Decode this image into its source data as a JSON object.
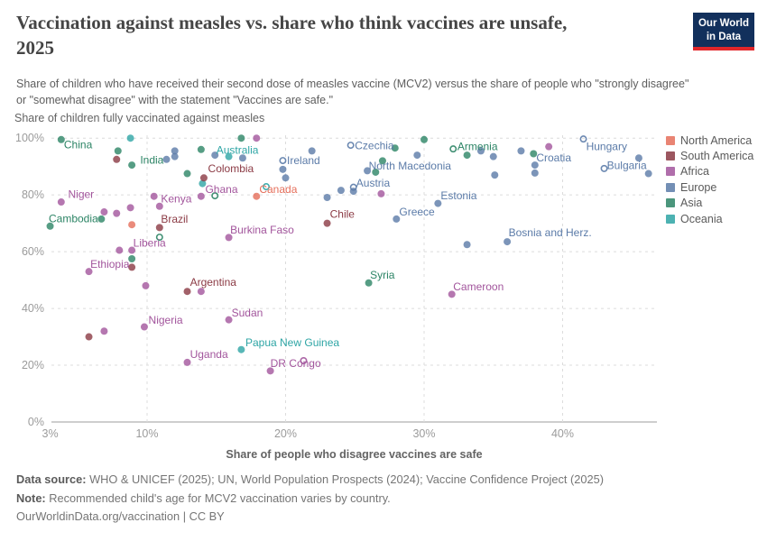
{
  "header": {
    "title_line1": "Vaccination against measles vs. share who think vaccines are unsafe,",
    "title_line2": "2025",
    "subtitle": "Share of children who have received their second dose of measles vaccine (MCV2) versus the share of people who \"strongly disagree\" or \"somewhat disagree\" with the statement \"Vaccines are safe.\"",
    "logo": {
      "line1": "Our World",
      "line2": "in Data",
      "bg": "#12305c",
      "accent": "#e2262a"
    }
  },
  "chart_data": {
    "type": "scatter",
    "title": "Vaccination against measles vs. share who think vaccines are unsafe, 2025",
    "xlabel": "Share of people who disagree vaccines are safe",
    "ylabel": "Share of children fully vaccinated against measles",
    "xlim": [
      2.5,
      46.8
    ],
    "ylim": [
      0,
      101
    ],
    "grid": "dashed",
    "legend_position": "right",
    "x_ticks": [
      {
        "v": 3,
        "t": "3%"
      },
      {
        "v": 10,
        "t": "10%"
      },
      {
        "v": 20,
        "t": "20%"
      },
      {
        "v": 30,
        "t": "30%"
      },
      {
        "v": 40,
        "t": "40%"
      }
    ],
    "y_ticks": [
      {
        "v": 0,
        "t": "0%"
      },
      {
        "v": 20,
        "t": "20%"
      },
      {
        "v": 40,
        "t": "40%"
      },
      {
        "v": 60,
        "t": "60%"
      },
      {
        "v": 80,
        "t": "80%"
      },
      {
        "v": 100,
        "t": "100%"
      }
    ],
    "legend": [
      {
        "id": "NA",
        "label": "North America",
        "color": "#E56E5A"
      },
      {
        "id": "SA",
        "label": "South America",
        "color": "#8B3A44"
      },
      {
        "id": "AF",
        "label": "Africa",
        "color": "#A2559C"
      },
      {
        "id": "EU",
        "label": "Europe",
        "color": "#5B7BA8"
      },
      {
        "id": "AS",
        "label": "Asia",
        "color": "#2C8465"
      },
      {
        "id": "OC",
        "label": "Oceania",
        "color": "#2EA5A5"
      }
    ],
    "points": [
      {
        "x": 3.8,
        "y": 99.5,
        "c": "AS",
        "n": "China"
      },
      {
        "x": 8.9,
        "y": 90.5,
        "c": "AS",
        "n": "India"
      },
      {
        "x": 3.0,
        "y": 69.0,
        "c": "AS",
        "n": "Cambodia"
      },
      {
        "x": 7.9,
        "y": 95.5,
        "c": "AS"
      },
      {
        "x": 13.9,
        "y": 96.0,
        "c": "AS"
      },
      {
        "x": 12.9,
        "y": 87.5,
        "c": "AS"
      },
      {
        "x": 16.8,
        "y": 100.0,
        "c": "AS"
      },
      {
        "x": 26.5,
        "y": 88.0,
        "c": "AS"
      },
      {
        "x": 27.0,
        "y": 92.0,
        "c": "AS"
      },
      {
        "x": 27.9,
        "y": 96.5,
        "c": "AS"
      },
      {
        "x": 30.0,
        "y": 99.5,
        "c": "AS"
      },
      {
        "x": 32.1,
        "y": 96.2,
        "c": "AS",
        "n": "Armenia",
        "o": true
      },
      {
        "x": 33.1,
        "y": 94.0,
        "c": "AS"
      },
      {
        "x": 37.9,
        "y": 94.5,
        "c": "AS"
      },
      {
        "x": 6.7,
        "y": 71.5,
        "c": "AS"
      },
      {
        "x": 8.9,
        "y": 57.5,
        "c": "AS"
      },
      {
        "x": 26.0,
        "y": 49.0,
        "c": "AS",
        "n": "Syria"
      },
      {
        "x": 14.9,
        "y": 79.7,
        "c": "AS",
        "o": true
      },
      {
        "x": 10.9,
        "y": 65.1,
        "c": "AS",
        "o": true
      },
      {
        "x": 8.8,
        "y": 100.0,
        "c": "OC"
      },
      {
        "x": 15.9,
        "y": 93.5,
        "c": "OC",
        "n": "Australia"
      },
      {
        "x": 14.0,
        "y": 84.0,
        "c": "OC"
      },
      {
        "x": 16.8,
        "y": 25.5,
        "c": "OC",
        "n": "Papua New Guinea"
      },
      {
        "x": 18.6,
        "y": 82.9,
        "c": "OC",
        "o": true
      },
      {
        "x": 3.8,
        "y": 77.5,
        "c": "AF",
        "n": "Niger"
      },
      {
        "x": 10.5,
        "y": 79.5,
        "c": "AF",
        "n": "Kenya"
      },
      {
        "x": 8.0,
        "y": 60.5,
        "c": "AF",
        "n": "Liberia"
      },
      {
        "x": 5.8,
        "y": 53.0,
        "c": "AF",
        "n": "Ethiopia"
      },
      {
        "x": 13.9,
        "y": 79.5,
        "c": "AF",
        "n": "Ghana"
      },
      {
        "x": 15.9,
        "y": 65.0,
        "c": "AF",
        "n": "Burkina Faso"
      },
      {
        "x": 32.0,
        "y": 45.0,
        "c": "AF",
        "n": "Cameroon"
      },
      {
        "x": 15.9,
        "y": 36.0,
        "c": "AF",
        "n": "Sudan"
      },
      {
        "x": 9.8,
        "y": 33.5,
        "c": "AF",
        "n": "Nigeria"
      },
      {
        "x": 12.9,
        "y": 21.0,
        "c": "AF",
        "n": "Uganda"
      },
      {
        "x": 18.9,
        "y": 18.0,
        "c": "AF",
        "n": "DR Congo"
      },
      {
        "x": 17.9,
        "y": 100.0,
        "c": "AF"
      },
      {
        "x": 26.9,
        "y": 80.4,
        "c": "AF"
      },
      {
        "x": 39.0,
        "y": 97.0,
        "c": "AF"
      },
      {
        "x": 6.9,
        "y": 74.0,
        "c": "AF"
      },
      {
        "x": 7.8,
        "y": 73.5,
        "c": "AF"
      },
      {
        "x": 8.8,
        "y": 75.5,
        "c": "AF"
      },
      {
        "x": 10.9,
        "y": 76.0,
        "c": "AF"
      },
      {
        "x": 8.9,
        "y": 60.5,
        "c": "AF"
      },
      {
        "x": 9.9,
        "y": 48.0,
        "c": "AF"
      },
      {
        "x": 13.9,
        "y": 46.0,
        "c": "AF"
      },
      {
        "x": 6.9,
        "y": 32.0,
        "c": "AF"
      },
      {
        "x": 21.3,
        "y": 21.6,
        "c": "AF",
        "o": true
      },
      {
        "x": 14.1,
        "y": 86.0,
        "c": "SA",
        "n": "Colombia"
      },
      {
        "x": 10.9,
        "y": 68.5,
        "c": "SA",
        "n": "Brazil"
      },
      {
        "x": 23.0,
        "y": 70.0,
        "c": "SA",
        "n": "Chile"
      },
      {
        "x": 12.9,
        "y": 46.0,
        "c": "SA",
        "n": "Argentina"
      },
      {
        "x": 7.8,
        "y": 92.5,
        "c": "SA"
      },
      {
        "x": 8.9,
        "y": 54.5,
        "c": "SA"
      },
      {
        "x": 5.8,
        "y": 30.0,
        "c": "SA"
      },
      {
        "x": 17.9,
        "y": 79.5,
        "c": "NA",
        "n": "Canada"
      },
      {
        "x": 8.9,
        "y": 69.5,
        "c": "NA"
      },
      {
        "x": 19.8,
        "y": 92.1,
        "c": "EU",
        "n": "Ireland",
        "o": true
      },
      {
        "x": 24.7,
        "y": 97.5,
        "c": "EU",
        "n": "Czechia",
        "o": true
      },
      {
        "x": 41.5,
        "y": 99.7,
        "c": "EU",
        "n": "Hungary",
        "o": true
      },
      {
        "x": 43.0,
        "y": 89.3,
        "c": "EU",
        "n": "Bulgaria",
        "o": true
      },
      {
        "x": 25.9,
        "y": 88.5,
        "c": "EU",
        "n": "North Macedonia"
      },
      {
        "x": 24.9,
        "y": 82.7,
        "c": "EU",
        "n": "Austria",
        "o": true
      },
      {
        "x": 28.0,
        "y": 71.5,
        "c": "EU",
        "n": "Greece"
      },
      {
        "x": 31.0,
        "y": 77.0,
        "c": "EU",
        "n": "Estonia"
      },
      {
        "x": 36.0,
        "y": 63.5,
        "c": "EU",
        "n": "Bosnia and Herz."
      },
      {
        "x": 38.0,
        "y": 90.5,
        "c": "EU",
        "n": "Croatia"
      },
      {
        "x": 38.0,
        "y": 87.7,
        "c": "EU"
      },
      {
        "x": 11.4,
        "y": 92.5,
        "c": "EU"
      },
      {
        "x": 12.0,
        "y": 95.5,
        "c": "EU"
      },
      {
        "x": 12.0,
        "y": 93.5,
        "c": "EU"
      },
      {
        "x": 14.9,
        "y": 94.0,
        "c": "EU"
      },
      {
        "x": 16.9,
        "y": 93.0,
        "c": "EU"
      },
      {
        "x": 19.8,
        "y": 89.0,
        "c": "EU"
      },
      {
        "x": 20.0,
        "y": 86.0,
        "c": "EU"
      },
      {
        "x": 21.9,
        "y": 95.5,
        "c": "EU"
      },
      {
        "x": 23.0,
        "y": 79.1,
        "c": "EU"
      },
      {
        "x": 24.0,
        "y": 81.6,
        "c": "EU"
      },
      {
        "x": 24.9,
        "y": 81.3,
        "c": "EU"
      },
      {
        "x": 29.5,
        "y": 94.0,
        "c": "EU"
      },
      {
        "x": 34.1,
        "y": 95.5,
        "c": "EU"
      },
      {
        "x": 35.0,
        "y": 93.5,
        "c": "EU"
      },
      {
        "x": 35.1,
        "y": 87.0,
        "c": "EU"
      },
      {
        "x": 37.0,
        "y": 95.5,
        "c": "EU"
      },
      {
        "x": 45.5,
        "y": 93.0,
        "c": "EU"
      },
      {
        "x": 46.2,
        "y": 87.5,
        "c": "EU"
      },
      {
        "x": 33.1,
        "y": 62.5,
        "c": "EU"
      }
    ],
    "point_labels": [
      {
        "text": "China",
        "x": 4.0,
        "y": 97.7,
        "c": "AS"
      },
      {
        "text": "India",
        "x": 9.5,
        "y": 92.3,
        "c": "AS"
      },
      {
        "text": "Niger",
        "x": 4.3,
        "y": 80.2,
        "c": "AF"
      },
      {
        "text": "Cambodia",
        "x": 2.9,
        "y": 71.6,
        "c": "AS"
      },
      {
        "text": "Kenya",
        "x": 11.0,
        "y": 78.6,
        "c": "AF"
      },
      {
        "text": "Brazil",
        "x": 11.0,
        "y": 71.5,
        "c": "SA"
      },
      {
        "text": "Liberia",
        "x": 9.0,
        "y": 63.1,
        "c": "AF"
      },
      {
        "text": "Ethiopia",
        "x": 5.9,
        "y": 55.6,
        "c": "AF"
      },
      {
        "text": "Colombia",
        "x": 14.4,
        "y": 89.3,
        "c": "SA"
      },
      {
        "text": "Ghana",
        "x": 14.2,
        "y": 82.0,
        "c": "AF"
      },
      {
        "text": "Australia",
        "x": 15.0,
        "y": 95.8,
        "c": "OC"
      },
      {
        "text": "Canada",
        "x": 18.1,
        "y": 82.0,
        "c": "NA"
      },
      {
        "text": "Ireland",
        "x": 20.1,
        "y": 92.1,
        "c": "EU"
      },
      {
        "text": "Burkina Faso",
        "x": 16.0,
        "y": 67.7,
        "c": "AF"
      },
      {
        "text": "Chile",
        "x": 23.2,
        "y": 73.2,
        "c": "SA"
      },
      {
        "text": "Czechia",
        "x": 25.0,
        "y": 97.4,
        "c": "EU"
      },
      {
        "text": "North Macedonia",
        "x": 26.0,
        "y": 90.2,
        "c": "EU"
      },
      {
        "text": "Austria",
        "x": 25.1,
        "y": 84.2,
        "c": "EU"
      },
      {
        "text": "Greece",
        "x": 28.2,
        "y": 74.0,
        "c": "EU"
      },
      {
        "text": "Estonia",
        "x": 31.2,
        "y": 79.7,
        "c": "EU"
      },
      {
        "text": "Armenia",
        "x": 32.4,
        "y": 97.0,
        "c": "AS"
      },
      {
        "text": "Syria",
        "x": 26.1,
        "y": 51.8,
        "c": "AS"
      },
      {
        "text": "Cameroon",
        "x": 32.1,
        "y": 47.6,
        "c": "AF"
      },
      {
        "text": "Bosnia and Herz.",
        "x": 36.1,
        "y": 66.7,
        "c": "EU"
      },
      {
        "text": "Hungary",
        "x": 41.7,
        "y": 97.0,
        "c": "EU"
      },
      {
        "text": "Croatia",
        "x": 38.1,
        "y": 93.1,
        "c": "EU"
      },
      {
        "text": "Bulgaria",
        "x": 43.2,
        "y": 90.4,
        "c": "EU"
      },
      {
        "text": "Argentina",
        "x": 13.1,
        "y": 49.2,
        "c": "SA"
      },
      {
        "text": "Sudan",
        "x": 16.1,
        "y": 38.4,
        "c": "AF"
      },
      {
        "text": "Nigeria",
        "x": 10.1,
        "y": 35.9,
        "c": "AF"
      },
      {
        "text": "Papua New Guinea",
        "x": 17.1,
        "y": 28.0,
        "c": "OC"
      },
      {
        "text": "Uganda",
        "x": 13.1,
        "y": 23.8,
        "c": "AF"
      },
      {
        "text": "DR Congo",
        "x": 18.9,
        "y": 20.6,
        "c": "AF"
      }
    ]
  },
  "footer": {
    "datasource_label": "Data source:",
    "datasource_text": " WHO & UNICEF (2025); UN, World Population Prospects (2024); Vaccine Confidence Project (2025)",
    "note_label": "Note:",
    "note_text": " Recommended child's age for MCV2 vaccination varies by country.",
    "citation": "OurWorldinData.org/vaccination | CC BY"
  }
}
